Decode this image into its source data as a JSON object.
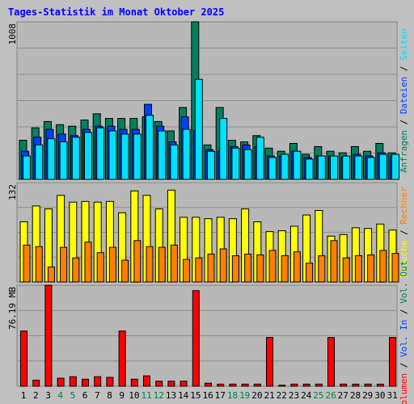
{
  "title": "Tages-Statistik im Monat Oktober 2025",
  "colors": {
    "anfragen": "#008060",
    "dateien": "#0040ff",
    "seiten": "#00e0ff",
    "besuche": "#ffff00",
    "rechner": "#ff8000",
    "volumen": "#ff0000",
    "weekend_label": "#008040",
    "background": "#c0c0c0",
    "panel": "#b8b8b8"
  },
  "chart_data": [
    {
      "type": "bar",
      "panel": "top",
      "ytick_label": "1008",
      "ymax": 1008,
      "right_label_parts": [
        {
          "text": "Anfragen",
          "color": "#008060"
        },
        {
          "text": " / ",
          "color": "#000000"
        },
        {
          "text": "Dateien",
          "color": "#0040ff"
        },
        {
          "text": " / ",
          "color": "#000000"
        },
        {
          "text": "Seiten",
          "color": "#00e0ff"
        }
      ],
      "categories": [
        "1",
        "2",
        "3",
        "4",
        "5",
        "6",
        "7",
        "8",
        "9",
        "10",
        "11",
        "12",
        "13",
        "14",
        "15",
        "16",
        "17",
        "18",
        "19",
        "20",
        "21",
        "22",
        "23",
        "24",
        "25",
        "26",
        "27",
        "28",
        "29",
        "30",
        "31"
      ],
      "series": [
        {
          "name": "Anfragen",
          "values": [
            250,
            330,
            370,
            350,
            340,
            380,
            420,
            390,
            390,
            390,
            400,
            370,
            310,
            460,
            1008,
            220,
            460,
            250,
            240,
            280,
            200,
            180,
            230,
            160,
            210,
            180,
            170,
            210,
            180,
            230,
            170
          ]
        },
        {
          "name": "Dateien",
          "values": [
            180,
            270,
            320,
            290,
            280,
            320,
            340,
            340,
            320,
            320,
            480,
            340,
            240,
            400,
            310,
            190,
            180,
            210,
            220,
            210,
            150,
            150,
            180,
            140,
            150,
            150,
            140,
            160,
            150,
            170,
            150
          ]
        },
        {
          "name": "Seiten",
          "values": [
            150,
            220,
            260,
            240,
            270,
            300,
            330,
            310,
            290,
            290,
            410,
            310,
            220,
            320,
            640,
            180,
            390,
            200,
            190,
            270,
            140,
            160,
            180,
            130,
            150,
            150,
            150,
            150,
            140,
            160,
            160
          ]
        }
      ]
    },
    {
      "type": "bar",
      "panel": "middle",
      "ytick_label": "132",
      "ymax": 132,
      "right_label_parts": [
        {
          "text": "Besuche",
          "color": "#ffff00"
        },
        {
          "text": " / ",
          "color": "#000000"
        },
        {
          "text": "Rechner",
          "color": "#ff8000"
        }
      ],
      "categories": [
        "1",
        "2",
        "3",
        "4",
        "5",
        "6",
        "7",
        "8",
        "9",
        "10",
        "11",
        "12",
        "13",
        "14",
        "15",
        "16",
        "17",
        "18",
        "19",
        "20",
        "21",
        "22",
        "23",
        "24",
        "25",
        "26",
        "27",
        "28",
        "29",
        "30",
        "31"
      ],
      "series": [
        {
          "name": "Besuche",
          "values": [
            80,
            101,
            97,
            115,
            106,
            107,
            106,
            107,
            92,
            121,
            115,
            97,
            122,
            86,
            86,
            84,
            86,
            84,
            97,
            80,
            67,
            68,
            74,
            89,
            95,
            61,
            63,
            72,
            71,
            77,
            69
          ]
        },
        {
          "name": "Rechner",
          "values": [
            49,
            47,
            20,
            46,
            32,
            53,
            39,
            46,
            29,
            55,
            47,
            46,
            49,
            30,
            32,
            37,
            44,
            35,
            37,
            36,
            42,
            35,
            40,
            25,
            35,
            55,
            32,
            35,
            36,
            42,
            38
          ]
        }
      ]
    },
    {
      "type": "bar",
      "panel": "bottom",
      "ytick_label": "76.19 MB",
      "ymax": 76.19,
      "right_label_parts": [
        {
          "text": "Volumen",
          "color": "#ff0000"
        },
        {
          "text": " / ",
          "color": "#000000"
        },
        {
          "text": "Vol. In",
          "color": "#0040ff"
        },
        {
          "text": " / ",
          "color": "#000000"
        },
        {
          "text": "Vol. Out",
          "color": "#008060"
        }
      ],
      "categories": [
        "1",
        "2",
        "3",
        "4",
        "5",
        "6",
        "7",
        "8",
        "9",
        "10",
        "11",
        "12",
        "13",
        "14",
        "15",
        "16",
        "17",
        "18",
        "19",
        "20",
        "21",
        "22",
        "23",
        "24",
        "25",
        "26",
        "27",
        "28",
        "29",
        "30",
        "31"
      ],
      "series": [
        {
          "name": "Volumen",
          "values": [
            41.6,
            4.6,
            76.2,
            6.1,
            7.2,
            5.3,
            7.2,
            6.7,
            41.6,
            5.3,
            7.8,
            3.8,
            3.8,
            3.8,
            72.1,
            2.3,
            1.6,
            1.6,
            1.6,
            1.6,
            36.8,
            0.8,
            1.6,
            1.6,
            1.6,
            36.8,
            1.6,
            1.6,
            1.6,
            1.6,
            36.8
          ]
        }
      ]
    }
  ],
  "weekend_days": [
    "4",
    "5",
    "11",
    "12",
    "18",
    "19",
    "25",
    "26"
  ]
}
